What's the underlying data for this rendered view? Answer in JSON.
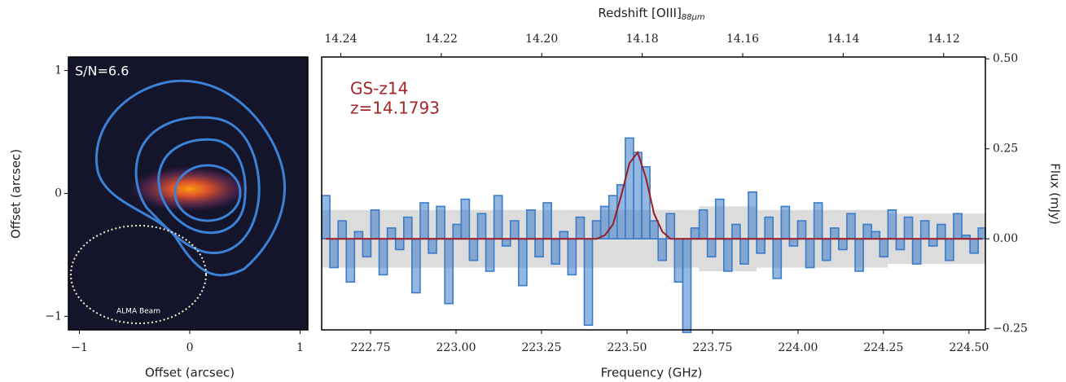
{
  "chart_data": [
    {
      "type": "image",
      "annotations": [
        "S/N=6.6",
        "ALMA Beam"
      ],
      "xlabel": "Offset (arcsec)",
      "ylabel": "Offset (arcsec)",
      "xlim": [
        -1.1,
        1.07
      ],
      "ylim": [
        -1.11,
        1.11
      ],
      "xticks": [
        {
          "value": -1,
          "label": "−1"
        },
        0,
        1
      ],
      "yticks": [
        {
          "value": -1,
          "label": "−1"
        },
        0,
        1
      ]
    },
    {
      "type": "step",
      "xlabel": "Frequency (GHz)",
      "x2label": "Redshift [OIII]",
      "x2label_sub": "88μm",
      "ylabel": "Flux (mJy)",
      "annotations": [
        "GS-z14",
        "z=14.1793"
      ],
      "annotation_color": "#a3262b",
      "xlim": [
        222.607,
        224.548
      ],
      "ylim": [
        -0.253,
        0.505
      ],
      "x2lim": [
        14.2438,
        14.1117
      ],
      "xticks": [
        222.75,
        {
          "value": 223.0,
          "label": "223.00"
        },
        223.25,
        {
          "value": 223.5,
          "label": "223.50"
        },
        223.75,
        {
          "value": 224.0,
          "label": "224.00"
        },
        224.25,
        {
          "value": 224.5,
          "label": "224.50"
        }
      ],
      "x2ticks": [
        14.24,
        14.22,
        {
          "value": 14.2,
          "label": "14.20"
        },
        14.18,
        14.16,
        14.14,
        14.12
      ],
      "yticks": [
        {
          "value": -0.25,
          "label": "−0.25"
        },
        {
          "value": 0,
          "label": "0.00"
        },
        0.25,
        {
          "value": 0.5,
          "label": "0.50"
        }
      ],
      "x": [
        222.619,
        222.643,
        222.667,
        222.691,
        222.715,
        222.739,
        222.763,
        222.787,
        222.811,
        222.835,
        222.859,
        222.883,
        222.907,
        222.931,
        222.955,
        222.979,
        223.003,
        223.027,
        223.051,
        223.075,
        223.099,
        223.123,
        223.147,
        223.171,
        223.195,
        223.219,
        223.243,
        223.267,
        223.291,
        223.315,
        223.339,
        223.363,
        223.387,
        223.411,
        223.435,
        223.459,
        223.483,
        223.507,
        223.531,
        223.555,
        223.579,
        223.603,
        223.627,
        223.651,
        223.675,
        223.699,
        223.723,
        223.747,
        223.771,
        223.795,
        223.819,
        223.843,
        223.867,
        223.891,
        223.915,
        223.939,
        223.963,
        223.987,
        224.011,
        224.035,
        224.059,
        224.083,
        224.107,
        224.131,
        224.155,
        224.179,
        224.203,
        224.227,
        224.251,
        224.275,
        224.299,
        224.323,
        224.347,
        224.371,
        224.395,
        224.419,
        224.443,
        224.467,
        224.491,
        224.515,
        224.539
      ],
      "series": [
        {
          "color": "#3a7cc8",
          "values": [
            0.12,
            -0.08,
            0.05,
            -0.12,
            0.02,
            -0.05,
            0.08,
            -0.1,
            0.03,
            -0.03,
            0.06,
            -0.15,
            0.1,
            -0.04,
            0.09,
            -0.18,
            0.04,
            0.11,
            -0.06,
            0.07,
            -0.09,
            0.12,
            -0.02,
            0.05,
            -0.13,
            0.08,
            -0.05,
            0.1,
            -0.07,
            0.02,
            -0.1,
            0.06,
            -0.24,
            0.05,
            0.09,
            0.12,
            0.15,
            0.28,
            0.24,
            0.2,
            0.05,
            -0.06,
            0.07,
            -0.12,
            -0.26,
            0.03,
            0.08,
            -0.05,
            0.11,
            -0.09,
            0.04,
            -0.07,
            0.13,
            -0.04,
            0.06,
            -0.11,
            0.09,
            -0.02,
            0.05,
            -0.08,
            0.1,
            -0.06,
            0.03,
            -0.03,
            0.07,
            -0.09,
            0.04,
            0.02,
            -0.05,
            0.08,
            -0.03,
            0.06,
            -0.07,
            0.05,
            -0.02,
            0.04,
            -0.06,
            0.07,
            0.01,
            -0.04,
            0.03
          ]
        },
        {
          "color": "#9b1c22",
          "values": [
            0,
            0,
            0,
            0,
            0,
            0,
            0,
            0,
            0,
            0,
            0,
            0,
            0,
            0,
            0,
            0,
            0,
            0,
            0,
            0,
            0,
            0,
            0,
            0,
            0,
            0,
            0,
            0,
            0,
            0,
            0,
            0,
            0,
            0,
            0.01,
            0.04,
            0.12,
            0.21,
            0.24,
            0.17,
            0.07,
            0.02,
            0,
            0,
            0,
            0,
            0,
            0,
            0,
            0,
            0,
            0,
            0,
            0,
            0,
            0,
            0,
            0,
            0,
            0,
            0,
            0,
            0,
            0,
            0,
            0,
            0,
            0,
            0,
            0,
            0,
            0,
            0,
            0,
            0,
            0,
            0,
            0,
            0,
            0,
            0
          ]
        },
        {
          "color": "#dcdcdc",
          "values": [
            0.08,
            0.08,
            0.08,
            0.08,
            0.08,
            0.08,
            0.08,
            0.08,
            0.08,
            0.08,
            0.08,
            0.08,
            0.08,
            0.08,
            0.08,
            0.08,
            0.08,
            0.08,
            0.08,
            0.08,
            0.08,
            0.08,
            0.08,
            0.08,
            0.08,
            0.08,
            0.08,
            0.08,
            0.08,
            0.08,
            0.08,
            0.08,
            0.08,
            0.08,
            0.08,
            0.08,
            0.08,
            0.08,
            0.08,
            0.08,
            0.08,
            0.08,
            0.08,
            0.08,
            0.08,
            0.08,
            0.09,
            0.09,
            0.09,
            0.09,
            0.09,
            0.09,
            0.09,
            0.08,
            0.08,
            0.08,
            0.08,
            0.08,
            0.08,
            0.08,
            0.08,
            0.08,
            0.08,
            0.08,
            0.08,
            0.08,
            0.08,
            0.08,
            0.08,
            0.07,
            0.07,
            0.07,
            0.07,
            0.07,
            0.07,
            0.07,
            0.07,
            0.07,
            0.07,
            0.07,
            0.07
          ]
        }
      ]
    }
  ]
}
